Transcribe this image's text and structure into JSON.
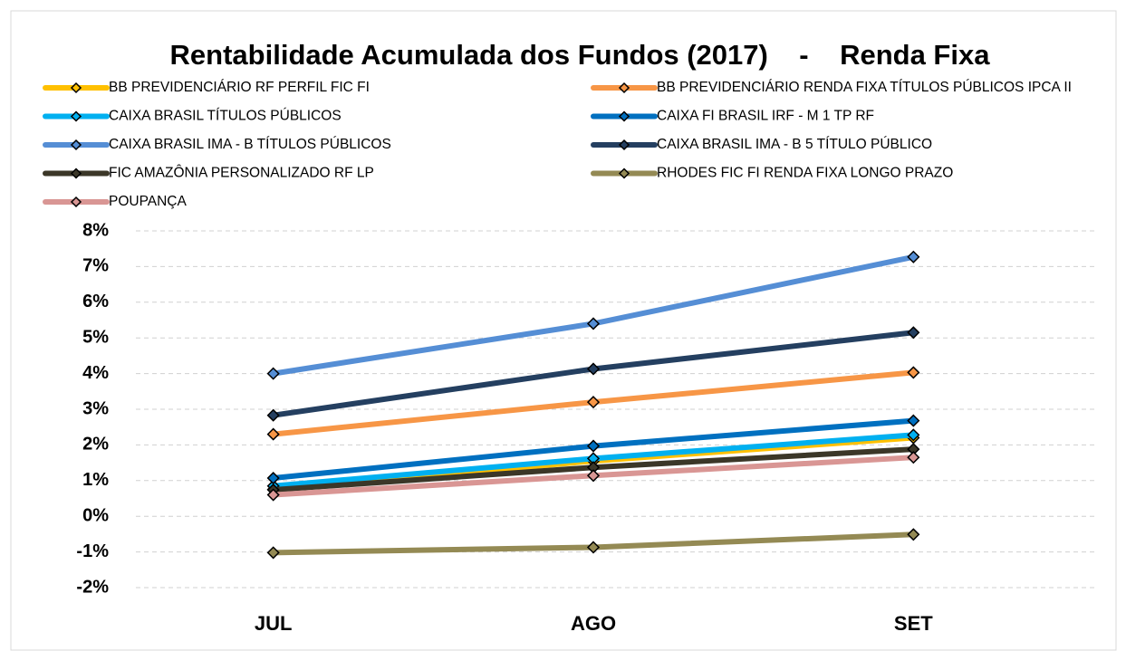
{
  "chart_data": {
    "type": "line",
    "title": "Rentabilidade Acumulada dos Fundos (2017)    -    Renda Fixa",
    "categories": [
      "JUL",
      "AGO",
      "SET"
    ],
    "series": [
      {
        "name": "BB PREVIDENCIÁRIO RF PERFIL FIC FI",
        "color": "#FFC000",
        "values": [
          0.75,
          1.55,
          2.2
        ]
      },
      {
        "name": "BB PREVIDENCIÁRIO RENDA FIXA TÍTULOS PÚBLICOS IPCA II",
        "color": "#F79646",
        "values": [
          2.3,
          3.2,
          4.03
        ]
      },
      {
        "name": "CAIXA BRASIL TÍTULOS PÚBLICOS",
        "color": "#00B0F0",
        "values": [
          0.85,
          1.62,
          2.28
        ]
      },
      {
        "name": "CAIXA FI BRASIL IRF - M 1 TP RF",
        "color": "#0070C0",
        "values": [
          1.07,
          1.97,
          2.68
        ]
      },
      {
        "name": "CAIXA BRASIL IMA - B TÍTULOS PÚBLICOS",
        "color": "#558ED5",
        "values": [
          4.0,
          5.4,
          7.27
        ]
      },
      {
        "name": "CAIXA BRASIL IMA - B 5 TÍTULO PÚBLICO",
        "color": "#243F60",
        "values": [
          2.83,
          4.13,
          5.15
        ]
      },
      {
        "name": "FIC AMAZÔNIA PERSONALIZADO RF LP",
        "color": "#3B3728",
        "values": [
          0.74,
          1.37,
          1.88
        ]
      },
      {
        "name": "RHODES FIC FI RENDA FIXA LONGO PRAZO",
        "color": "#948A54",
        "values": [
          -1.02,
          -0.87,
          -0.51
        ]
      },
      {
        "name": "POUPANÇA",
        "color": "#D99694",
        "values": [
          0.6,
          1.14,
          1.65
        ]
      }
    ],
    "ylim": [
      -2,
      8
    ],
    "yticks": [
      {
        "value": -2,
        "label": "-2%"
      },
      {
        "value": -1,
        "label": "-1%"
      },
      {
        "value": 0,
        "label": "0%"
      },
      {
        "value": 1,
        "label": "1%"
      },
      {
        "value": 2,
        "label": "2%"
      },
      {
        "value": 3,
        "label": "3%"
      },
      {
        "value": 4,
        "label": "4%"
      },
      {
        "value": 5,
        "label": "5%"
      },
      {
        "value": 6,
        "label": "6%"
      },
      {
        "value": 7,
        "label": "7%"
      },
      {
        "value": 8,
        "label": "8%"
      }
    ],
    "grid": true
  }
}
